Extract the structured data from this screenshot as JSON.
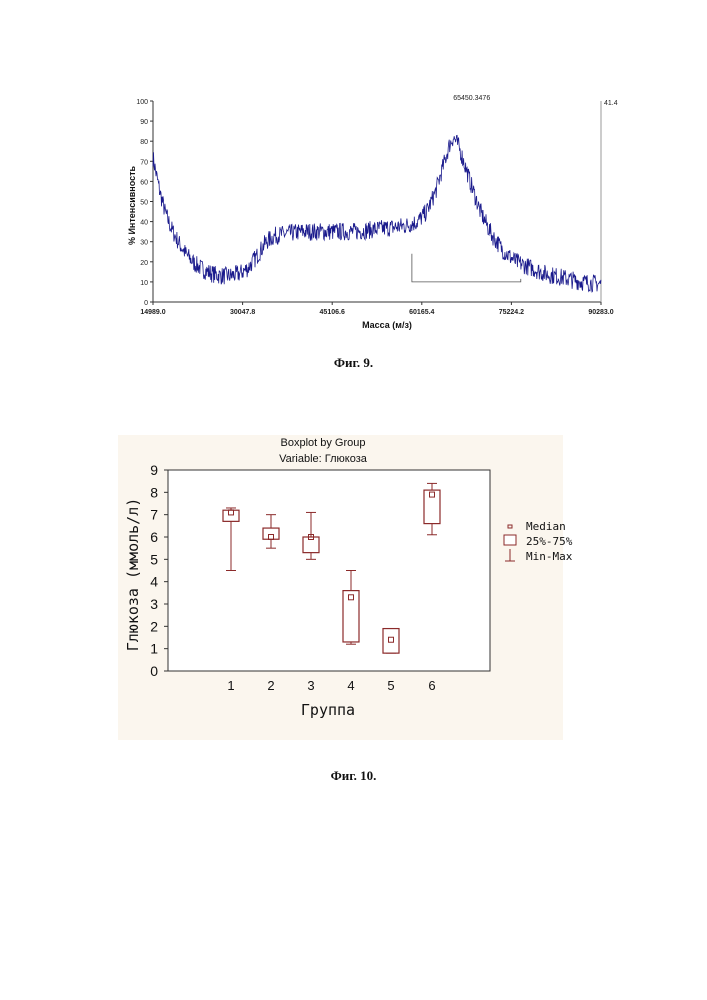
{
  "figures": [
    {
      "caption": "Фиг. 9."
    },
    {
      "caption": "Фиг. 10."
    }
  ],
  "chart_data": [
    {
      "type": "line",
      "title": "",
      "xlabel": "Масса (м/з)",
      "ylabel": "% Интенсивность",
      "xlim": [
        14989.0,
        90283.0
      ],
      "ylim": [
        0,
        100
      ],
      "x_ticks": [
        "14989.0",
        "30047.8",
        "45106.6",
        "60165.4",
        "75224.2",
        "90283.0"
      ],
      "y_ticks": [
        0,
        10,
        20,
        30,
        40,
        50,
        60,
        70,
        80,
        90,
        100
      ],
      "peak_label": "65450.3476",
      "right_axis_label": "41.4",
      "color": "#1a1a8c",
      "series": [
        {
          "x": [
            14989,
            15500,
            16200,
            17000,
            18000,
            19200,
            20500,
            22000,
            23500,
            25000,
            26500,
            28000,
            29500,
            31000,
            32500,
            34000,
            35500,
            37500,
            40000,
            43000,
            46000,
            49000,
            52000,
            55000,
            57500,
            59500,
            61000,
            62500,
            63800,
            64800,
            65450,
            66300,
            67200,
            68500,
            70000,
            72000,
            74000,
            76000,
            78500,
            81000,
            84000,
            87000,
            90283
          ],
          "y": [
            72,
            64,
            54,
            45,
            37,
            30,
            24,
            19,
            16,
            14,
            13,
            13,
            14,
            17,
            23,
            30,
            33,
            34,
            35,
            35,
            35,
            35,
            36,
            37,
            38,
            40,
            45,
            55,
            68,
            78,
            82,
            78,
            70,
            58,
            45,
            33,
            25,
            20,
            17,
            14,
            12,
            10,
            9
          ]
        }
      ]
    },
    {
      "type": "box",
      "title": "Boxplot by Group",
      "subtitle": "Variable: Глюкоза",
      "xlabel": "Группа",
      "ylabel": "Глюкоза (ммоль/л)",
      "ylim": [
        0,
        9
      ],
      "y_ticks": [
        0,
        1,
        2,
        3,
        4,
        5,
        6,
        7,
        8,
        9
      ],
      "categories": [
        "1",
        "2",
        "3",
        "4",
        "5",
        "6"
      ],
      "legend": [
        "Median",
        "25%-75%",
        "Min-Max"
      ],
      "legend_position": "right",
      "color": "#8b2a2a",
      "boxes": [
        {
          "min": 4.5,
          "q1": 6.7,
          "median": 7.1,
          "q3": 7.2,
          "max": 7.3
        },
        {
          "min": 5.5,
          "q1": 5.9,
          "median": 6.0,
          "q3": 6.4,
          "max": 7.0
        },
        {
          "min": 5.0,
          "q1": 5.3,
          "median": 6.0,
          "q3": 6.0,
          "max": 7.1
        },
        {
          "min": 1.2,
          "q1": 1.3,
          "median": 3.3,
          "q3": 3.6,
          "max": 4.5
        },
        {
          "min": 0.8,
          "q1": 0.8,
          "median": 1.4,
          "q3": 1.9,
          "max": 1.9
        },
        {
          "min": 6.1,
          "q1": 6.6,
          "median": 7.9,
          "q3": 8.1,
          "max": 8.4
        }
      ]
    }
  ]
}
